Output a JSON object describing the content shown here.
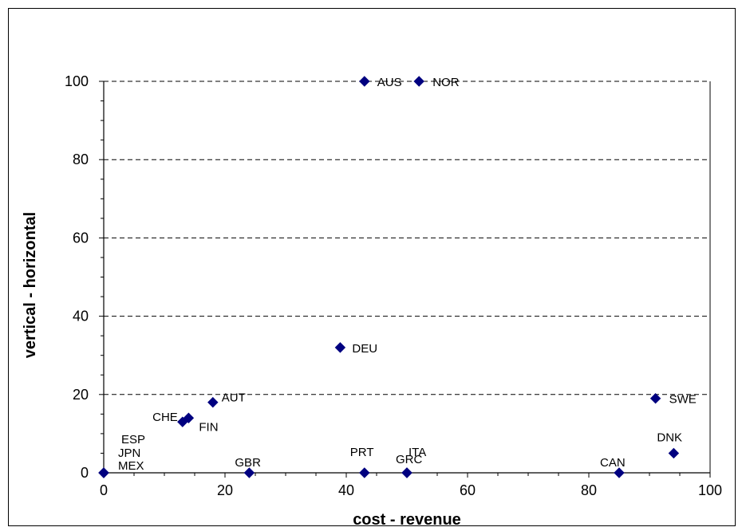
{
  "chart_data": {
    "type": "scatter",
    "title": "",
    "xlabel": "cost - revenue",
    "ylabel": "vertical - horizontal",
    "xlim": [
      0,
      100
    ],
    "ylim": [
      0,
      100
    ],
    "x_ticks": [
      0,
      20,
      40,
      60,
      80,
      100
    ],
    "y_ticks": [
      0,
      20,
      40,
      60,
      80,
      100
    ],
    "grid": "horizontal dashed",
    "marker_color": "#000080",
    "points": [
      {
        "label": "MEX",
        "x": 0,
        "y": 0
      },
      {
        "label": "JPN",
        "x": 0,
        "y": 0
      },
      {
        "label": "ESP",
        "x": 0,
        "y": 0
      },
      {
        "label": "CHE",
        "x": 13,
        "y": 13
      },
      {
        "label": "FIN",
        "x": 14,
        "y": 14
      },
      {
        "label": "AUT",
        "x": 18,
        "y": 18
      },
      {
        "label": "GBR",
        "x": 24,
        "y": 0
      },
      {
        "label": "DEU",
        "x": 39,
        "y": 32
      },
      {
        "label": "AUS",
        "x": 43,
        "y": 100
      },
      {
        "label": "PRT",
        "x": 43,
        "y": 0
      },
      {
        "label": "GRC",
        "x": 50,
        "y": 0
      },
      {
        "label": "ITA",
        "x": 50,
        "y": 0
      },
      {
        "label": "NOR",
        "x": 52,
        "y": 100
      },
      {
        "label": "CAN",
        "x": 85,
        "y": 0
      },
      {
        "label": "SWE",
        "x": 91,
        "y": 19
      },
      {
        "label": "DNK",
        "x": 94,
        "y": 5
      }
    ]
  }
}
